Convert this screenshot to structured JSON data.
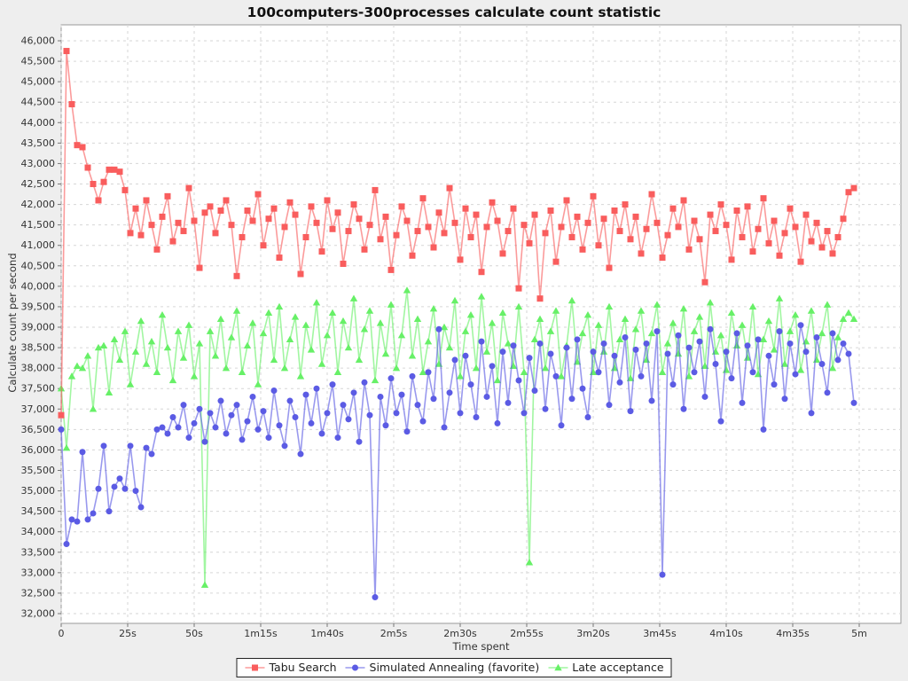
{
  "title": "100computers-300processes calculate count statistic",
  "chart_data": {
    "type": "line",
    "title": "100computers-300processes calculate count statistic",
    "xlabel": "Time spent",
    "ylabel": "Calculate count per second",
    "ylim": [
      32000,
      46000
    ],
    "y_tick_step": 500,
    "grid": "dashed",
    "legend_position": "bottom",
    "x_ticks": [
      {
        "label": "0",
        "seconds": 0
      },
      {
        "label": "25s",
        "seconds": 25
      },
      {
        "label": "50s",
        "seconds": 50
      },
      {
        "label": "1m15s",
        "seconds": 75
      },
      {
        "label": "1m40s",
        "seconds": 100
      },
      {
        "label": "2m5s",
        "seconds": 125
      },
      {
        "label": "2m30s",
        "seconds": 150
      },
      {
        "label": "2m55s",
        "seconds": 175
      },
      {
        "label": "3m20s",
        "seconds": 200
      },
      {
        "label": "3m45s",
        "seconds": 225
      },
      {
        "label": "4m10s",
        "seconds": 250
      },
      {
        "label": "4m35s",
        "seconds": 275
      },
      {
        "label": "5m",
        "seconds": 300
      }
    ],
    "x_start_seconds": 0,
    "x_step_seconds": 2,
    "colors": {
      "background": "#EEEEEE",
      "plot_background": "#FFFFFF",
      "gridline": "#D6D6D6",
      "plot_border": "#999999"
    },
    "series": [
      {
        "name": "Tabu Search",
        "marker": "square",
        "color": "#F95D5D",
        "values": [
          36850,
          45750,
          44450,
          43450,
          43400,
          42900,
          42500,
          42100,
          42550,
          42850,
          42850,
          42800,
          42350,
          41300,
          41900,
          41250,
          42100,
          41500,
          40900,
          41700,
          42200,
          41100,
          41550,
          41350,
          42400,
          41600,
          40450,
          41800,
          41950,
          41300,
          41850,
          42100,
          41500,
          40250,
          41200,
          41850,
          41600,
          42250,
          41000,
          41650,
          41900,
          40700,
          41450,
          42050,
          41750,
          40300,
          41200,
          41950,
          41550,
          40850,
          42100,
          41400,
          41800,
          40550,
          41350,
          42000,
          41650,
          40900,
          41500,
          42350,
          41150,
          41700,
          40400,
          41250,
          41950,
          41600,
          40750,
          41350,
          42150,
          41450,
          40950,
          41800,
          41300,
          42400,
          41550,
          40650,
          41900,
          41200,
          41750,
          40350,
          41450,
          42050,
          41600,
          40800,
          41350,
          41900,
          39950,
          41500,
          41050,
          41750,
          39700,
          41300,
          41850,
          40600,
          41450,
          42100,
          41200,
          41700,
          40900,
          41550,
          42200,
          41000,
          41650,
          40450,
          41850,
          41350,
          42000,
          41150,
          41700,
          40800,
          41400,
          42250,
          41550,
          40700,
          41250,
          41900,
          41450,
          42100,
          40900,
          41600,
          41150,
          40100,
          41750,
          41350,
          42000,
          41500,
          40650,
          41850,
          41200,
          41950,
          40850,
          41400,
          42150,
          41050,
          41600,
          40750,
          41300,
          41900,
          41450,
          40600,
          41750,
          41100,
          41550,
          40950,
          41350,
          40800,
          41200,
          41650,
          42300,
          42400
        ]
      },
      {
        "name": "Simulated Annealing (favorite)",
        "marker": "circle",
        "color": "#5B5BE4",
        "values": [
          36500,
          33700,
          34300,
          34250,
          35950,
          34300,
          34450,
          35050,
          36100,
          34500,
          35100,
          35300,
          35050,
          36100,
          35000,
          34600,
          36050,
          35900,
          36500,
          36550,
          36400,
          36800,
          36550,
          37100,
          36300,
          36650,
          37000,
          36200,
          36900,
          36550,
          37200,
          36400,
          36850,
          37100,
          36250,
          36700,
          37300,
          36500,
          36950,
          36300,
          37450,
          36600,
          36100,
          37200,
          36800,
          35900,
          37350,
          36650,
          37500,
          36400,
          36900,
          37600,
          36300,
          37100,
          36750,
          37400,
          36200,
          37650,
          36850,
          32400,
          37300,
          36600,
          37750,
          36900,
          37350,
          36450,
          37800,
          37100,
          36700,
          37900,
          37250,
          38950,
          36550,
          37400,
          38200,
          36900,
          38300,
          37600,
          36800,
          38650,
          37300,
          38050,
          36650,
          38400,
          37150,
          38550,
          37700,
          36900,
          38250,
          37450,
          38600,
          37000,
          38350,
          37800,
          36600,
          38500,
          37250,
          38700,
          37500,
          36800,
          38400,
          37900,
          38600,
          37100,
          38300,
          37650,
          38750,
          36950,
          38450,
          37800,
          38600,
          37200,
          38900,
          32950,
          38350,
          37600,
          38800,
          37000,
          38500,
          37900,
          38650,
          37300,
          38950,
          38100,
          36700,
          38400,
          37750,
          38850,
          37150,
          38550,
          37900,
          38700,
          36500,
          38300,
          37600,
          38900,
          37250,
          38600,
          37850,
          39050,
          38400,
          36900,
          38750,
          38100,
          37400,
          38850,
          38200,
          38600,
          38350,
          37150
        ]
      },
      {
        "name": "Late acceptance",
        "marker": "triangle",
        "color": "#67F067",
        "values": [
          37500,
          36050,
          37800,
          38050,
          38000,
          38300,
          37000,
          38500,
          38550,
          37400,
          38700,
          38200,
          38900,
          37600,
          38400,
          39150,
          38100,
          38650,
          37900,
          39300,
          38500,
          37700,
          38900,
          38250,
          39050,
          37800,
          38600,
          32700,
          38900,
          38300,
          39200,
          38000,
          38750,
          39400,
          37900,
          38550,
          39100,
          37600,
          38850,
          39350,
          38200,
          39500,
          38000,
          38700,
          39250,
          37800,
          39050,
          38450,
          39600,
          38100,
          38800,
          39350,
          37900,
          39150,
          38500,
          39700,
          38200,
          38950,
          39400,
          37700,
          39100,
          38350,
          39550,
          38000,
          38800,
          39900,
          38300,
          39200,
          37900,
          38650,
          39450,
          38100,
          39000,
          38500,
          39650,
          37800,
          38900,
          39300,
          38000,
          39750,
          38400,
          39100,
          37700,
          39350,
          38600,
          38050,
          39500,
          37900,
          33250,
          38700,
          39200,
          38000,
          38900,
          39400,
          37800,
          38550,
          39650,
          38150,
          38850,
          39300,
          37900,
          39050,
          38400,
          39500,
          38000,
          38700,
          39200,
          37750,
          38950,
          39400,
          38200,
          38850,
          39550,
          37900,
          38600,
          39100,
          38350,
          39450,
          37800,
          38900,
          39250,
          38050,
          39600,
          38400,
          38800,
          37950,
          39350,
          38550,
          39050,
          38250,
          39500,
          37850,
          38700,
          39150,
          38450,
          39700,
          38100,
          38900,
          39300,
          37950,
          38650,
          39400,
          38200,
          38850,
          39550,
          38000,
          38750,
          39200,
          39350,
          39200
        ]
      }
    ]
  }
}
